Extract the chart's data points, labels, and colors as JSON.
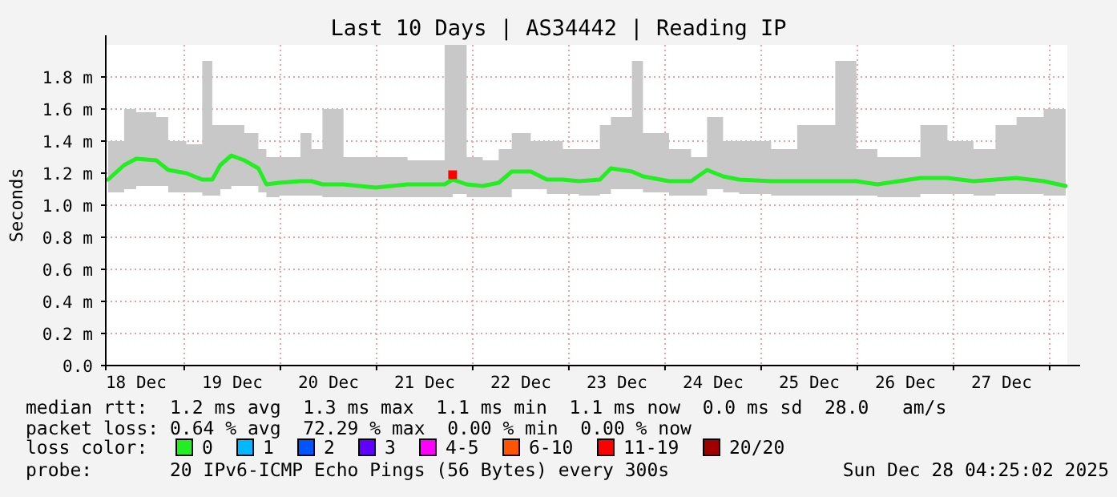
{
  "chart_data": {
    "type": "line",
    "title": "Last 10 Days | AS34442 | Reading IP",
    "ylabel": "Seconds",
    "xlim": [
      "2025-12-18T04:25",
      "2025-12-28T04:25"
    ],
    "xticks": [
      {
        "value": "2025-12-18T12:00",
        "label": "18 Dec"
      },
      {
        "value": "2025-12-19T12:00",
        "label": "19 Dec"
      },
      {
        "value": "2025-12-20T12:00",
        "label": "20 Dec"
      },
      {
        "value": "2025-12-21T12:00",
        "label": "21 Dec"
      },
      {
        "value": "2025-12-22T12:00",
        "label": "22 Dec"
      },
      {
        "value": "2025-12-23T12:00",
        "label": "23 Dec"
      },
      {
        "value": "2025-12-24T12:00",
        "label": "24 Dec"
      },
      {
        "value": "2025-12-25T12:00",
        "label": "25 Dec"
      },
      {
        "value": "2025-12-26T12:00",
        "label": "26 Dec"
      },
      {
        "value": "2025-12-27T12:00",
        "label": "27 Dec"
      },
      {
        "value": "2025-12-19T00:00",
        "label": null
      },
      {
        "value": "2025-12-20T00:00",
        "label": null
      },
      {
        "value": "2025-12-21T00:00",
        "label": null
      },
      {
        "value": "2025-12-22T00:00",
        "label": null
      },
      {
        "value": "2025-12-23T00:00",
        "label": null
      },
      {
        "value": "2025-12-24T00:00",
        "label": null
      },
      {
        "value": "2025-12-25T00:00",
        "label": null
      },
      {
        "value": "2025-12-26T00:00",
        "label": null
      },
      {
        "value": "2025-12-27T00:00",
        "label": null
      },
      {
        "value": "2025-12-28T00:00",
        "label": null
      }
    ],
    "ylim": [
      0,
      2
    ],
    "yticks": [
      {
        "value": 0,
        "label": "0.0"
      },
      {
        "value": 0.2,
        "label": "0.2 m"
      },
      {
        "value": 0.4,
        "label": "0.4 m"
      },
      {
        "value": 0.6,
        "label": "0.6 m"
      },
      {
        "value": 0.8,
        "label": "0.8 m"
      },
      {
        "value": 1,
        "label": "1.0 m"
      },
      {
        "value": 1.2,
        "label": "1.2 m"
      },
      {
        "value": 1.4,
        "label": "1.4 m"
      },
      {
        "value": 1.6,
        "label": "1.6 m"
      },
      {
        "value": 1.8,
        "label": "1.8 m"
      }
    ],
    "grid": true,
    "legend": "bottom",
    "legend_title": "loss color:",
    "marker": "none",
    "line_style": "solid",
    "series": [
      {
        "name": "0",
        "color": "#22ee22",
        "x": [
          "2025-12-18T05:00",
          "2025-12-18T09:00",
          "2025-12-18T12:00",
          "2025-12-18T17:00",
          "2025-12-18T20:00",
          "2025-12-19T00:30",
          "2025-12-19T04:30",
          "2025-12-19T07:00",
          "2025-12-19T09:00",
          "2025-12-19T11:45",
          "2025-12-19T15:00",
          "2025-12-19T18:30",
          "2025-12-19T20:30",
          "2025-12-19T23:45",
          "2025-12-20T05:00",
          "2025-12-20T07:45",
          "2025-12-20T10:30",
          "2025-12-20T15:45",
          "2025-12-20T23:45",
          "2025-12-21T07:45",
          "2025-12-21T17:00",
          "2025-12-21T19:00",
          "2025-12-21T22:30",
          "2025-12-22T02:30",
          "2025-12-22T06:30",
          "2025-12-22T09:45",
          "2025-12-22T14:30",
          "2025-12-22T18:30",
          "2025-12-22T22:30",
          "2025-12-23T02:30",
          "2025-12-23T07:45",
          "2025-12-23T10:30",
          "2025-12-23T15:45",
          "2025-12-23T18:30",
          "2025-12-24T01:00",
          "2025-12-24T06:30",
          "2025-12-24T10:30",
          "2025-12-24T14:30",
          "2025-12-24T18:30",
          "2025-12-25T02:30",
          "2025-12-25T09:00",
          "2025-12-25T18:30",
          "2025-12-25T23:45",
          "2025-12-26T05:00",
          "2025-12-26T15:45",
          "2025-12-26T22:30",
          "2025-12-27T05:00",
          "2025-12-27T10:30",
          "2025-12-27T15:45",
          "2025-12-27T22:30",
          "2025-12-28T04:00"
        ],
        "values": [
          1.16,
          1.25,
          1.29,
          1.28,
          1.22,
          1.2,
          1.16,
          1.16,
          1.25,
          1.31,
          1.28,
          1.23,
          1.13,
          1.14,
          1.15,
          1.15,
          1.13,
          1.13,
          1.11,
          1.13,
          1.13,
          1.16,
          1.13,
          1.12,
          1.14,
          1.21,
          1.21,
          1.16,
          1.16,
          1.15,
          1.16,
          1.23,
          1.21,
          1.18,
          1.15,
          1.15,
          1.22,
          1.18,
          1.16,
          1.15,
          1.15,
          1.15,
          1.15,
          1.13,
          1.17,
          1.17,
          1.15,
          1.16,
          1.17,
          1.15,
          1.12
        ],
        "lower": [
          1.08,
          1.1,
          1.12,
          1.12,
          1.08,
          1.08,
          1.06,
          1.06,
          1.1,
          1.12,
          1.12,
          1.08,
          1.05,
          1.06,
          1.06,
          1.06,
          1.05,
          1.05,
          1.05,
          1.05,
          1.05,
          1.07,
          1.05,
          1.05,
          1.05,
          1.1,
          1.1,
          1.07,
          1.07,
          1.06,
          1.07,
          1.1,
          1.1,
          1.08,
          1.06,
          1.06,
          1.1,
          1.08,
          1.07,
          1.06,
          1.06,
          1.06,
          1.06,
          1.05,
          1.07,
          1.07,
          1.06,
          1.07,
          1.07,
          1.06,
          1.05
        ],
        "upper": [
          1.4,
          1.6,
          1.58,
          1.55,
          1.4,
          1.38,
          1.9,
          1.5,
          1.5,
          1.5,
          1.45,
          1.35,
          1.3,
          1.3,
          1.45,
          1.35,
          1.6,
          1.3,
          1.3,
          1.28,
          2.0,
          2.0,
          1.3,
          1.28,
          1.35,
          1.45,
          1.4,
          1.4,
          1.35,
          1.35,
          1.5,
          1.55,
          1.9,
          1.45,
          1.35,
          1.3,
          1.55,
          1.4,
          1.4,
          1.35,
          1.5,
          1.9,
          1.35,
          1.3,
          1.5,
          1.4,
          1.35,
          1.5,
          1.55,
          1.6,
          1.3
        ]
      },
      {
        "name": "1",
        "color": "#00b8ff",
        "type": "scatter"
      },
      {
        "name": "2",
        "color": "#0055ff",
        "type": "scatter"
      },
      {
        "name": "3",
        "color": "#6000ff",
        "type": "scatter"
      },
      {
        "name": "4-5",
        "color": "#ff00ff",
        "type": "scatter"
      },
      {
        "name": "6-10",
        "color": "#ff5500",
        "type": "scatter"
      },
      {
        "name": "11-19",
        "color": "#ff0000",
        "type": "scatter",
        "marker": "square",
        "x": [
          "2025-12-21T19:00"
        ],
        "values": [
          1.19
        ]
      },
      {
        "name": "20/20",
        "color": "#a10000",
        "type": "scatter"
      }
    ],
    "annotations": [
      "median rtt:  1.2 ms avg  1.3 ms max  1.1 ms min  1.1 ms now  0.0 ms sd  28.0   am/s",
      "packet loss: 0.64 % avg  72.29 % max  0.00 % min  0.00 % now",
      "probe:       20 IPv6-ICMP Echo Pings (56 Bytes) every 300s",
      "Sun Dec 28 04:25:02 2025"
    ]
  }
}
